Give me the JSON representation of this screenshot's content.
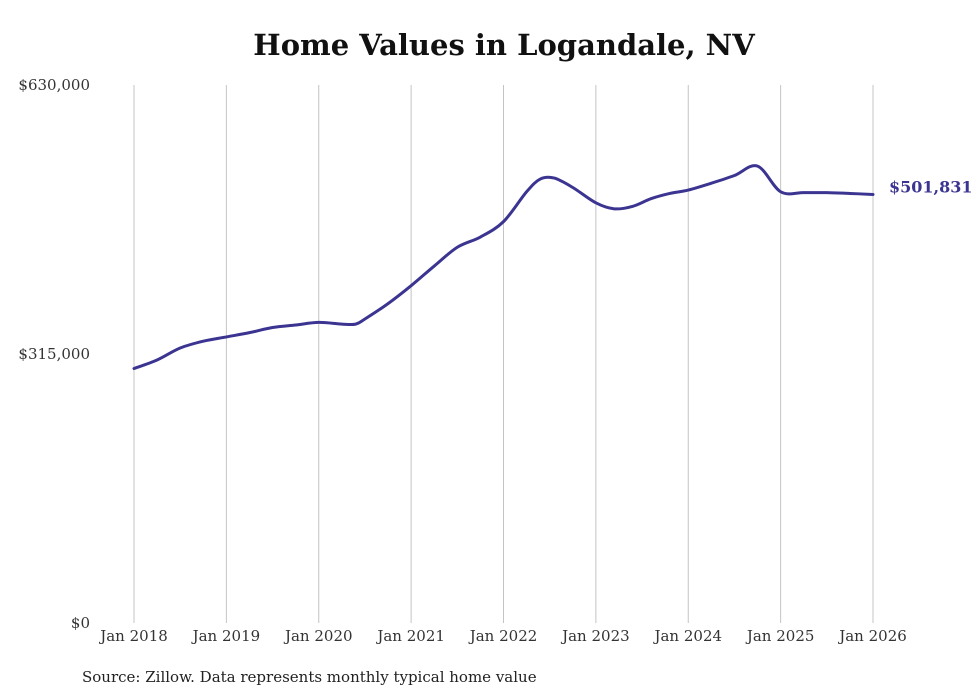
{
  "chart_data": {
    "type": "line",
    "title": "Home Values in Logandale, NV",
    "source": "Source: Zillow. Data represents monthly typical home value",
    "y_ticks": [
      "$0",
      "$315,000",
      "$630,000"
    ],
    "y_tick_values": [
      0,
      315000,
      630000
    ],
    "x_ticks": [
      "Jan 2018",
      "Jan 2019",
      "Jan 2020",
      "Jan 2021",
      "Jan 2022",
      "Jan 2023",
      "Jan 2024",
      "Jan 2025",
      "Jan 2026"
    ],
    "x_tick_values": [
      2018,
      2019,
      2020,
      2021,
      2022,
      2023,
      2024,
      2025,
      2026
    ],
    "ylim": [
      0,
      630000
    ],
    "xlim": [
      2018,
      2026
    ],
    "end_label": "$501,831",
    "line_color": "#3b3591",
    "series": [
      {
        "name": "Typical home value",
        "x": [
          2018.0,
          2018.25,
          2018.5,
          2018.75,
          2019.0,
          2019.25,
          2019.5,
          2019.75,
          2020.0,
          2020.25,
          2020.4,
          2020.5,
          2020.75,
          2021.0,
          2021.25,
          2021.5,
          2021.75,
          2022.0,
          2022.25,
          2022.4,
          2022.55,
          2022.75,
          2023.0,
          2023.2,
          2023.4,
          2023.6,
          2023.8,
          2024.0,
          2024.25,
          2024.5,
          2024.75,
          2025.0,
          2025.25,
          2025.5,
          2025.75,
          2026.0
        ],
        "y": [
          298000,
          308000,
          322000,
          330000,
          335000,
          340000,
          346000,
          349000,
          352000,
          350000,
          350000,
          356000,
          374000,
          395000,
          418000,
          440000,
          452000,
          470000,
          505000,
          520000,
          521000,
          510000,
          492000,
          485000,
          488000,
          497000,
          503000,
          507000,
          515000,
          524000,
          535000,
          505000,
          504000,
          504000,
          503000,
          501831
        ]
      }
    ]
  }
}
